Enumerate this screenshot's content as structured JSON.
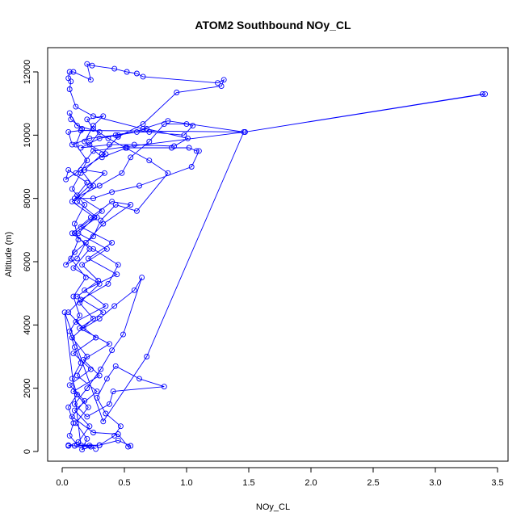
{
  "chart_data": {
    "type": "line",
    "title": "ATOM2 Southbound NOy_CL",
    "xlabel": "NOy_CL",
    "ylabel": "Altitude (m)",
    "xlim": [
      0,
      3.5
    ],
    "ylim": [
      0,
      12000
    ],
    "xticks": [
      0.0,
      0.5,
      1.0,
      1.5,
      2.0,
      2.5,
      3.0,
      3.5
    ],
    "xtick_labels": [
      "0.0",
      "0.5",
      "1.0",
      "1.5",
      "2.0",
      "2.5",
      "3.0",
      "3.5"
    ],
    "yticks": [
      0,
      2000,
      4000,
      6000,
      8000,
      10000,
      12000
    ],
    "ytick_labels": [
      "0",
      "2000",
      "4000",
      "6000",
      "8000",
      "10000",
      "12000"
    ],
    "grid": false,
    "color": "#0000ff",
    "markers": "open circles connected by lines",
    "series": [
      {
        "points": [
          [
            0.05,
            200
          ],
          [
            0.1,
            180
          ],
          [
            0.22,
            190
          ],
          [
            0.3,
            200
          ],
          [
            0.18,
            160
          ],
          [
            0.12,
            220
          ],
          [
            0.06,
            500
          ],
          [
            0.09,
            900
          ],
          [
            0.05,
            1400
          ],
          [
            0.12,
            1800
          ],
          [
            0.08,
            2300
          ],
          [
            0.15,
            2800
          ],
          [
            0.1,
            3300
          ],
          [
            0.06,
            3800
          ],
          [
            0.14,
            4300
          ],
          [
            0.09,
            4900
          ],
          [
            0.19,
            5500
          ],
          [
            0.07,
            6100
          ],
          [
            0.13,
            6700
          ],
          [
            0.1,
            7200
          ],
          [
            0.18,
            7800
          ],
          [
            0.08,
            8300
          ],
          [
            0.15,
            8800
          ],
          [
            0.2,
            9200
          ],
          [
            0.11,
            9700
          ],
          [
            0.16,
            10200
          ],
          [
            0.07,
            10500
          ],
          [
            0.06,
            10700
          ],
          [
            0.12,
            10300
          ],
          [
            0.3,
            10100
          ],
          [
            0.22,
            9700
          ],
          [
            0.35,
            9400
          ],
          [
            0.15,
            8900
          ],
          [
            0.25,
            8400
          ],
          [
            0.12,
            7900
          ],
          [
            0.28,
            7400
          ],
          [
            0.1,
            6900
          ],
          [
            0.22,
            6400
          ],
          [
            0.09,
            5800
          ],
          [
            0.3,
            5300
          ],
          [
            0.14,
            4700
          ],
          [
            0.25,
            4200
          ],
          [
            0.08,
            3600
          ],
          [
            0.2,
            3000
          ],
          [
            0.12,
            2400
          ],
          [
            0.28,
            1900
          ],
          [
            0.1,
            1300
          ],
          [
            0.22,
            800
          ],
          [
            0.13,
            300
          ],
          [
            0.05,
            180
          ],
          [
            0.3,
            200
          ],
          [
            0.42,
            500
          ],
          [
            0.47,
            800
          ],
          [
            0.35,
            1200
          ],
          [
            0.28,
            1700
          ],
          [
            0.36,
            2300
          ],
          [
            0.43,
            2700
          ],
          [
            0.62,
            2300
          ],
          [
            0.82,
            2050
          ],
          [
            0.41,
            1900
          ],
          [
            0.38,
            1500
          ],
          [
            0.2,
            1100
          ],
          [
            0.1,
            1500
          ],
          [
            0.2,
            2000
          ],
          [
            0.31,
            2600
          ],
          [
            0.4,
            3200
          ],
          [
            0.49,
            3700
          ],
          [
            0.64,
            5500
          ],
          [
            0.58,
            5100
          ],
          [
            0.42,
            4600
          ],
          [
            0.3,
            4200
          ],
          [
            0.17,
            3900
          ],
          [
            0.05,
            4400
          ],
          [
            0.15,
            4800
          ],
          [
            0.37,
            5300
          ],
          [
            0.45,
            5900
          ],
          [
            0.25,
            6400
          ],
          [
            0.08,
            6900
          ],
          [
            0.23,
            7400
          ],
          [
            0.4,
            7900
          ],
          [
            0.55,
            7800
          ],
          [
            0.33,
            7200
          ],
          [
            0.19,
            6600
          ],
          [
            0.12,
            6100
          ],
          [
            0.03,
            5900
          ],
          [
            0.1,
            6300
          ],
          [
            0.25,
            6800
          ],
          [
            0.31,
            7300
          ],
          [
            0.43,
            7800
          ],
          [
            0.6,
            7600
          ],
          [
            0.85,
            8800
          ],
          [
            0.7,
            9200
          ],
          [
            0.51,
            9600
          ],
          [
            0.37,
            9900
          ],
          [
            0.25,
            10200
          ],
          [
            0.2,
            10500
          ],
          [
            0.33,
            10600
          ],
          [
            0.25,
            10300
          ],
          [
            0.18,
            9800
          ],
          [
            0.32,
            9300
          ],
          [
            0.52,
            9600
          ],
          [
            0.88,
            9600
          ],
          [
            1.02,
            9600
          ],
          [
            1.08,
            9500
          ],
          [
            1.1,
            9500
          ],
          [
            1.04,
            9000
          ],
          [
            0.62,
            8400
          ],
          [
            0.4,
            8200
          ],
          [
            0.25,
            8000
          ],
          [
            0.1,
            8000
          ],
          [
            0.3,
            8400
          ],
          [
            0.48,
            8800
          ],
          [
            0.55,
            9300
          ],
          [
            0.7,
            9800
          ],
          [
            0.82,
            10350
          ],
          [
            1.0,
            10350
          ],
          [
            1.05,
            10300
          ],
          [
            0.98,
            10000
          ],
          [
            0.7,
            10100
          ],
          [
            0.6,
            10100
          ],
          [
            0.45,
            10000
          ],
          [
            0.3,
            9900
          ],
          [
            0.15,
            9600
          ],
          [
            0.38,
            9700
          ],
          [
            0.58,
            9700
          ],
          [
            0.9,
            9650
          ],
          [
            1.01,
            9900
          ],
          [
            0.68,
            10200
          ],
          [
            0.43,
            10000
          ],
          [
            0.22,
            9900
          ],
          [
            0.08,
            9700
          ],
          [
            0.05,
            10100
          ],
          [
            0.15,
            10150
          ],
          [
            1.47,
            10100
          ],
          [
            3.38,
            11300
          ],
          [
            3.4,
            11300
          ],
          [
            1.47,
            10100
          ],
          [
            0.25,
            9500
          ],
          [
            0.11,
            8800
          ],
          [
            0.03,
            8600
          ],
          [
            0.05,
            8900
          ],
          [
            0.2,
            8500
          ],
          [
            0.12,
            8100
          ],
          [
            0.32,
            7600
          ],
          [
            0.15,
            7100
          ],
          [
            0.4,
            6600
          ],
          [
            0.21,
            6100
          ],
          [
            0.44,
            5600
          ],
          [
            0.18,
            5100
          ],
          [
            0.35,
            4600
          ],
          [
            0.11,
            4100
          ],
          [
            0.27,
            3600
          ],
          [
            0.09,
            3100
          ],
          [
            0.23,
            2600
          ],
          [
            0.06,
            2100
          ],
          [
            0.18,
            1600
          ],
          [
            0.08,
            1100
          ],
          [
            0.25,
            600
          ],
          [
            0.45,
            550
          ],
          [
            0.53,
            150
          ],
          [
            0.55,
            180
          ],
          [
            0.45,
            350
          ],
          [
            0.3,
            200
          ],
          [
            0.15,
            200
          ],
          [
            0.02,
            4400
          ],
          [
            0.33,
            950
          ],
          [
            0.68,
            3000
          ],
          [
            1.46,
            10100
          ],
          [
            0.85,
            10450
          ],
          [
            0.65,
            10200
          ],
          [
            0.25,
            10600
          ],
          [
            0.11,
            10900
          ],
          [
            0.06,
            11450
          ],
          [
            0.07,
            11700
          ],
          [
            0.05,
            11800
          ],
          [
            0.06,
            12000
          ],
          [
            0.09,
            12000
          ],
          [
            0.23,
            11750
          ],
          [
            0.2,
            12250
          ],
          [
            0.24,
            12200
          ],
          [
            0.42,
            12100
          ],
          [
            0.52,
            12000
          ],
          [
            0.6,
            11950
          ],
          [
            0.65,
            11850
          ],
          [
            1.25,
            11650
          ],
          [
            1.3,
            11750
          ],
          [
            1.28,
            11550
          ],
          [
            0.92,
            11350
          ],
          [
            0.65,
            10350
          ],
          [
            0.45,
            9950
          ],
          [
            0.32,
            9400
          ],
          [
            0.18,
            8900
          ],
          [
            0.34,
            8800
          ],
          [
            0.22,
            8400
          ],
          [
            0.08,
            7900
          ],
          [
            0.26,
            7400
          ],
          [
            0.13,
            6900
          ],
          [
            0.36,
            6400
          ],
          [
            0.16,
            5900
          ],
          [
            0.29,
            5400
          ],
          [
            0.12,
            4900
          ],
          [
            0.33,
            4400
          ],
          [
            0.14,
            3900
          ],
          [
            0.38,
            3400
          ],
          [
            0.17,
            2900
          ],
          [
            0.3,
            2400
          ],
          [
            0.09,
            1900
          ],
          [
            0.21,
            1400
          ],
          [
            0.11,
            900
          ],
          [
            0.2,
            400
          ],
          [
            0.16,
            60
          ],
          [
            0.23,
            150
          ],
          [
            0.27,
            80
          ]
        ]
      }
    ]
  }
}
